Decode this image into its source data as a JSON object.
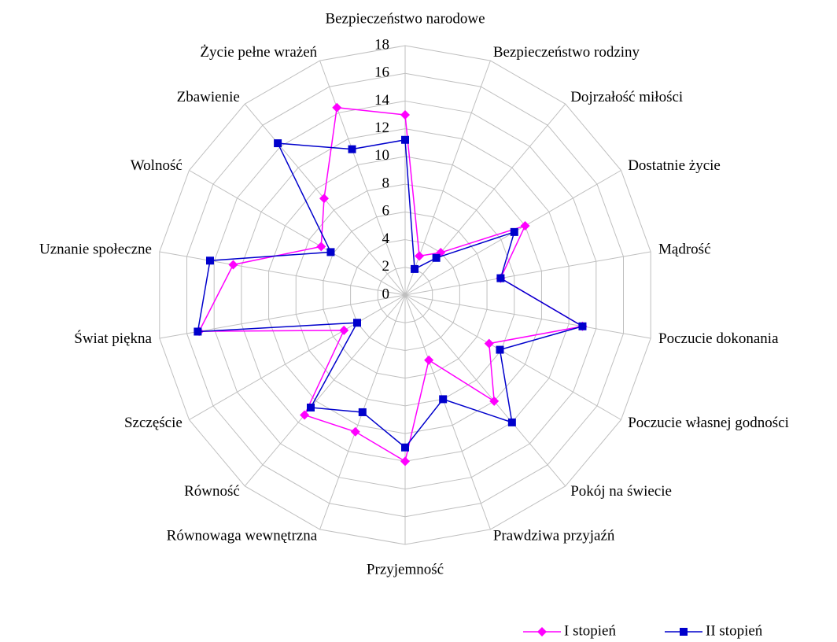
{
  "chart_data": {
    "type": "radar",
    "categories": [
      "Bezpieczeństwo narodowe",
      "Bezpieczeństwo rodziny",
      "Dojrzałość miłości",
      "Dostatnie życie",
      "Mądrość",
      "Poczucie dokonania",
      "Poczucie własnej godności",
      "Pokój na świecie",
      "Prawdziwa przyjaźń",
      "Przyjemność",
      "Równowaga wewnętrzna",
      "Równość",
      "Szczęście",
      "Świat piękna",
      "Uznanie społeczne",
      "Wolność",
      "Zbawienie",
      "Życie pełne wrażeń"
    ],
    "series": [
      {
        "name": "I stopień",
        "color": "#ff00ff",
        "marker": "diamond",
        "values": [
          13,
          3,
          4,
          10,
          7,
          13,
          7,
          10,
          5,
          12,
          10.5,
          11.3,
          5.1,
          15.1,
          12.6,
          7,
          9.1,
          14.4
        ]
      },
      {
        "name": "II stopień",
        "color": "#0000cc",
        "marker": "square",
        "values": [
          11.2,
          2,
          3.5,
          9.1,
          7,
          13,
          7.9,
          12,
          8,
          11,
          9,
          10.6,
          4,
          15.2,
          14.3,
          6.2,
          14.3,
          11.2
        ]
      }
    ],
    "ylim": [
      0,
      18
    ],
    "yticks": [
      0,
      2,
      4,
      6,
      8,
      10,
      12,
      14,
      16,
      18
    ],
    "grid": true,
    "legend": "bottom-right"
  }
}
